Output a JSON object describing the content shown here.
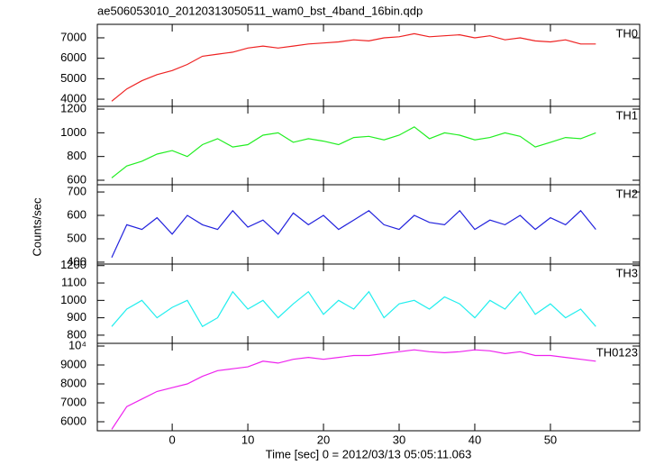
{
  "chart_data": {
    "type": "line",
    "title": "ae506053010_20120313050511_wam0_bst_4band_16bin.qdp",
    "xlabel": "Time [sec] 0 = 2012/03/13 05:05:11.063",
    "ylabel": "Counts/sec",
    "xlim": [
      -9.9,
      61.8
    ],
    "xticks": [
      0,
      10,
      20,
      30,
      40,
      50
    ],
    "x": [
      -8,
      -6,
      -4,
      -2,
      0,
      2,
      4,
      6,
      8,
      10,
      12,
      14,
      16,
      18,
      20,
      22,
      24,
      26,
      28,
      30,
      32,
      34,
      36,
      38,
      40,
      42,
      44,
      46,
      48,
      50,
      52,
      54,
      56
    ],
    "panels": [
      {
        "label": "TH0",
        "color": "#ee2222",
        "ylim": [
          3650,
          7660
        ],
        "yticks": [
          4000,
          5000,
          6000,
          7000
        ],
        "values": [
          3900,
          4500,
          4900,
          5200,
          5400,
          5700,
          6100,
          6200,
          6300,
          6500,
          6600,
          6500,
          6600,
          6700,
          6750,
          6800,
          6900,
          6850,
          7000,
          7050,
          7200,
          7050,
          7100,
          7150,
          7000,
          7100,
          6900,
          7000,
          6850,
          6800,
          6900,
          6700,
          6700
        ]
      },
      {
        "label": "TH1",
        "color": "#22ee22",
        "ylim": [
          562,
          1223
        ],
        "yticks": [
          600,
          800,
          1000,
          1200
        ],
        "values": [
          620,
          720,
          760,
          820,
          850,
          800,
          900,
          950,
          880,
          900,
          980,
          1000,
          920,
          950,
          930,
          900,
          960,
          970,
          940,
          980,
          1050,
          950,
          1000,
          980,
          940,
          960,
          1000,
          970,
          880,
          920,
          960,
          950,
          1000
        ]
      },
      {
        "label": "TH2",
        "color": "#2222dd",
        "ylim": [
          392,
          731
        ],
        "yticks": [
          400,
          500,
          600,
          700
        ],
        "values": [
          420,
          560,
          540,
          590,
          520,
          600,
          560,
          540,
          620,
          550,
          580,
          520,
          610,
          560,
          600,
          540,
          580,
          620,
          560,
          540,
          600,
          570,
          560,
          620,
          540,
          580,
          560,
          600,
          540,
          590,
          560,
          620,
          540
        ]
      },
      {
        "label": "TH3",
        "color": "#22eeee",
        "ylim": [
          753,
          1209
        ],
        "yticks": [
          800,
          900,
          1000,
          1100,
          1200
        ],
        "values": [
          850,
          950,
          1000,
          900,
          960,
          1000,
          850,
          900,
          1050,
          950,
          1000,
          900,
          980,
          1050,
          920,
          1000,
          950,
          1050,
          900,
          980,
          1000,
          950,
          1020,
          980,
          900,
          1000,
          950,
          1050,
          920,
          980,
          900,
          950,
          850
        ]
      },
      {
        "label": "TH0123",
        "color": "#ee22ee",
        "ylim": [
          5524,
          10143
        ],
        "yticks": [
          6000,
          7000,
          8000,
          9000,
          {
            "value": 10000,
            "label": "10⁴"
          }
        ],
        "values": [
          5600,
          6800,
          7200,
          7600,
          7800,
          8000,
          8400,
          8700,
          8800,
          8900,
          9200,
          9100,
          9300,
          9400,
          9300,
          9400,
          9500,
          9500,
          9600,
          9700,
          9800,
          9700,
          9650,
          9700,
          9800,
          9750,
          9600,
          9700,
          9500,
          9500,
          9400,
          9300,
          9200
        ]
      }
    ]
  }
}
